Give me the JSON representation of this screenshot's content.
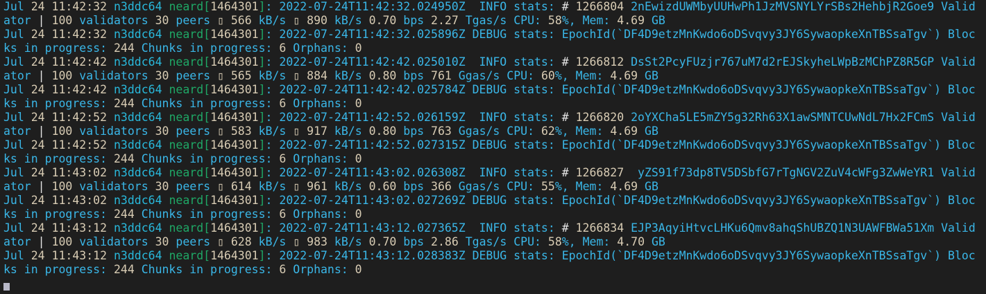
{
  "colors": {
    "background": "#1e1e1e",
    "text": "#3ab7e8",
    "number": "#d8ccb4",
    "hostname": "#29b8db",
    "process": "#1fa866",
    "cursor": "#b8b8c8"
  },
  "entries": [
    {
      "month": "Jul",
      "time": " 24 11:42:32",
      "host": "n3ddc64",
      "proc": "neard",
      "pid": "1464301",
      "head": " 2022-07-24T11:42:32.024950Z  INFO stats:",
      "body": " # 1266804 2nEwizdUWMbyUUHwPh1JzMVSNYLYrSBs2HehbjR2Goe9 Validator | 100 validators 30 peers ▯ 566 kB/s ▯ 890 kB/s 0.70 bps 2.27 Tgas/s CPU: 58%, Mem: 4.69 GB"
    },
    {
      "month": "Jul",
      "time": " 24 11:42:32",
      "host": "n3ddc64",
      "proc": "neard",
      "pid": "1464301",
      "head": " 2022-07-24T11:42:32.025896Z DEBUG stats:",
      "body": " EpochId(`DF4D9etzMnKwdo6oDSvqvy3JY6SywaopkeXnTBSsaTgv`) Blocks in progress: 244 Chunks in progress: 6 Orphans: 0"
    },
    {
      "month": "Jul",
      "time": " 24 11:42:42",
      "host": "n3ddc64",
      "proc": "neard",
      "pid": "1464301",
      "head": " 2022-07-24T11:42:42.025010Z  INFO stats:",
      "body": " # 1266812 DsSt2PcyFUzjr767uM7d2rEJSkyheLWpBzMChPZ8R5GP Validator | 100 validators 30 peers ▯ 565 kB/s ▯ 884 kB/s 0.80 bps 761 Ggas/s CPU: 60%, Mem: 4.69 GB"
    },
    {
      "month": "Jul",
      "time": " 24 11:42:42",
      "host": "n3ddc64",
      "proc": "neard",
      "pid": "1464301",
      "head": " 2022-07-24T11:42:42.025784Z DEBUG stats:",
      "body": " EpochId(`DF4D9etzMnKwdo6oDSvqvy3JY6SywaopkeXnTBSsaTgv`) Blocks in progress: 244 Chunks in progress: 6 Orphans: 0"
    },
    {
      "month": "Jul",
      "time": " 24 11:42:52",
      "host": "n3ddc64",
      "proc": "neard",
      "pid": "1464301",
      "head": " 2022-07-24T11:42:52.026159Z  INFO stats:",
      "body": " # 1266820 2oYXCha5LE5mZY5g32Rh63X1awSMNTCUwNdL7Hx2FCmS Validator | 100 validators 30 peers ▯ 583 kB/s ▯ 917 kB/s 0.80 bps 763 Ggas/s CPU: 62%, Mem: 4.69 GB"
    },
    {
      "month": "Jul",
      "time": " 24 11:42:52",
      "host": "n3ddc64",
      "proc": "neard",
      "pid": "1464301",
      "head": " 2022-07-24T11:42:52.027315Z DEBUG stats:",
      "body": " EpochId(`DF4D9etzMnKwdo6oDSvqvy3JY6SywaopkeXnTBSsaTgv`) Blocks in progress: 244 Chunks in progress: 6 Orphans: 0"
    },
    {
      "month": "Jul",
      "time": " 24 11:43:02",
      "host": "n3ddc64",
      "proc": "neard",
      "pid": "1464301",
      "head": " 2022-07-24T11:43:02.026308Z  INFO stats:",
      "body": " # 1266827  yZS91f73dp8TV5DSbfG7rTgNGV2ZuV4cWFg3ZwWeYR1 Validator | 100 validators 30 peers ▯ 614 kB/s ▯ 961 kB/s 0.60 bps 366 Ggas/s CPU: 55%, Mem: 4.69 GB"
    },
    {
      "month": "Jul",
      "time": " 24 11:43:02",
      "host": "n3ddc64",
      "proc": "neard",
      "pid": "1464301",
      "head": " 2022-07-24T11:43:02.027269Z DEBUG stats:",
      "body": " EpochId(`DF4D9etzMnKwdo6oDSvqvy3JY6SywaopkeXnTBSsaTgv`) Blocks in progress: 244 Chunks in progress: 6 Orphans: 0"
    },
    {
      "month": "Jul",
      "time": " 24 11:43:12",
      "host": "n3ddc64",
      "proc": "neard",
      "pid": "1464301",
      "head": " 2022-07-24T11:43:12.027365Z  INFO stats:",
      "body": " # 1266834 EJP3AqyiHtvcLHKu6Qmv8ahqShUBZQ1N3UAWFBWa51Xm Validator | 100 validators 30 peers ▯ 628 kB/s ▯ 983 kB/s 0.70 bps 2.86 Tgas/s CPU: 58%, Mem: 4.70 GB"
    },
    {
      "month": "Jul",
      "time": " 24 11:43:12",
      "host": "n3ddc64",
      "proc": "neard",
      "pid": "1464301",
      "head": " 2022-07-24T11:43:12.028383Z DEBUG stats:",
      "body": " EpochId(`DF4D9etzMnKwdo6oDSvqvy3JY6SywaopkeXnTBSsaTgv`) Blocks in progress: 244 Chunks in progress: 6 Orphans: 0"
    }
  ]
}
